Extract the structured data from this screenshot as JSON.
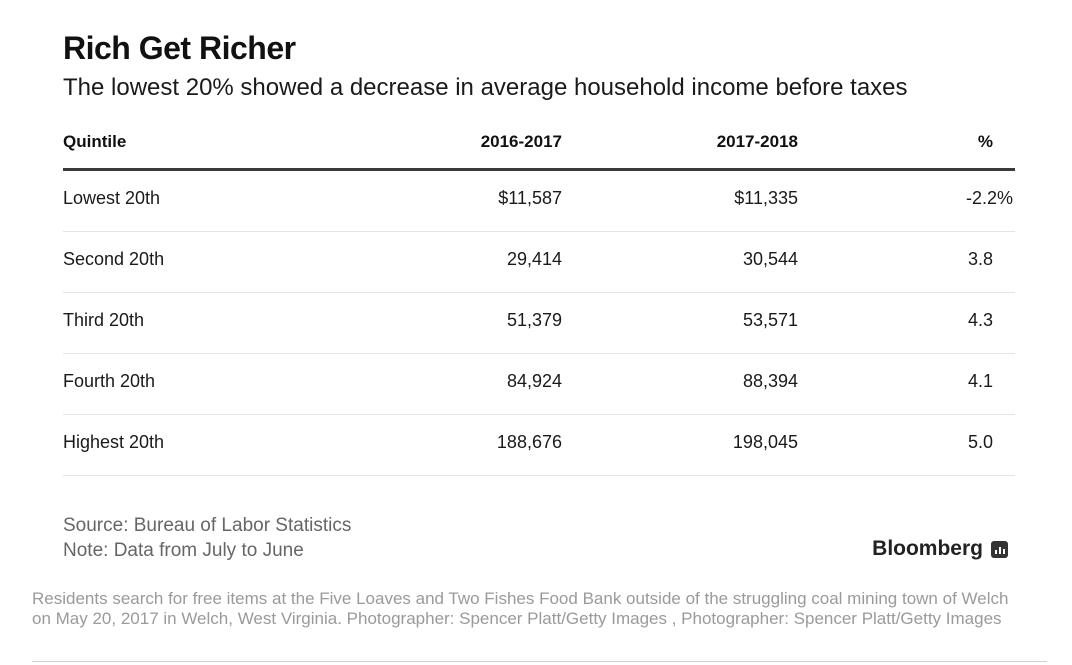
{
  "title": "Rich Get Richer",
  "subtitle": "The lowest 20% showed a decrease in average household income before taxes",
  "table": {
    "headers": [
      "Quintile",
      "2016-2017",
      "2017-2018",
      "%"
    ],
    "rows": [
      [
        "Lowest 20th",
        "$11,587",
        "$11,335",
        "-2.2%"
      ],
      [
        "Second 20th",
        "29,414",
        "30,544",
        "3.8"
      ],
      [
        "Third 20th",
        "51,379",
        "53,571",
        "4.3"
      ],
      [
        "Fourth 20th",
        "84,924",
        "88,394",
        "4.1"
      ],
      [
        "Highest 20th",
        "188,676",
        "198,045",
        "5.0"
      ]
    ]
  },
  "source": "Source: Bureau of Labor Statistics",
  "note": "Note: Data from July to June",
  "brand": "Bloomberg",
  "brand_icon": "bloomberg-terminal-icon",
  "caption": "Residents search for free items at the Five Loaves and Two Fishes Food Bank outside of the struggling coal mining town of Welch on May 20, 2017 in Welch, West Virginia. Photographer: Spencer Platt/Getty Images , Photographer: Spencer Platt/Getty Images"
}
